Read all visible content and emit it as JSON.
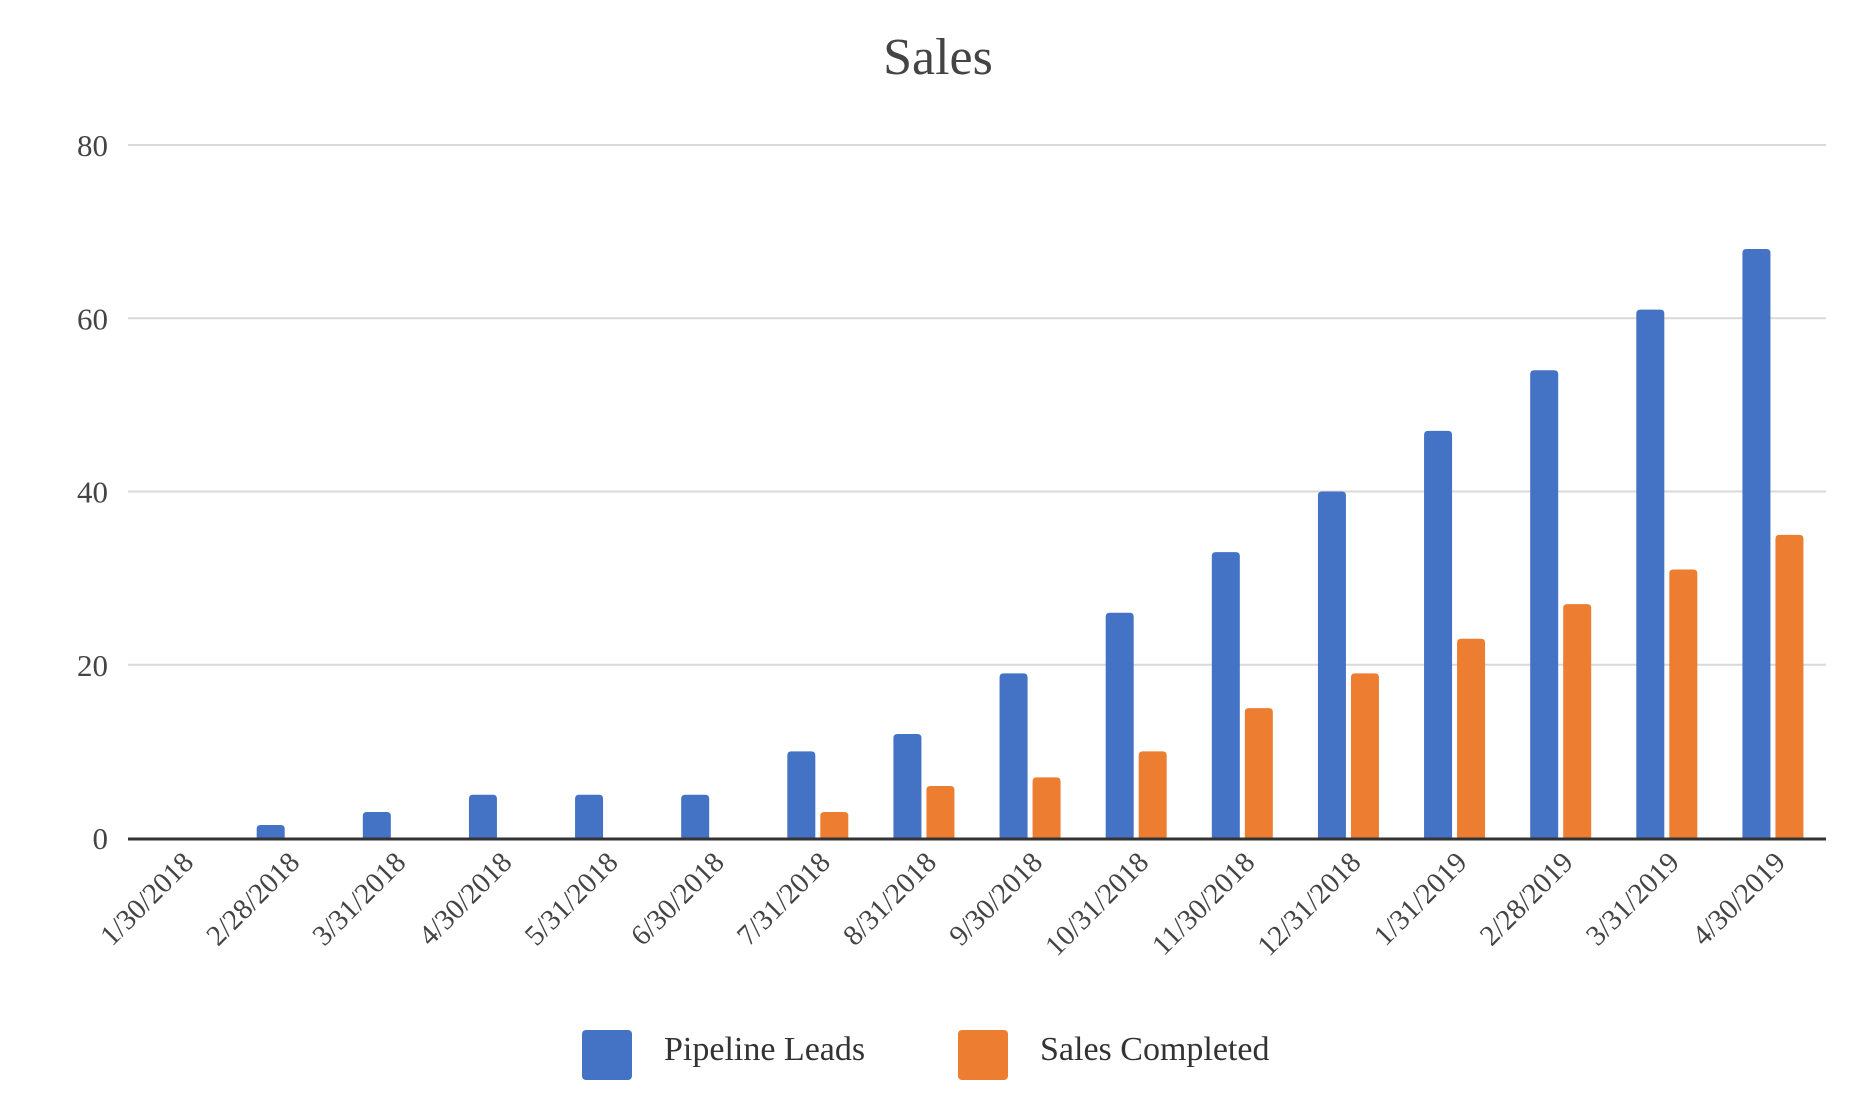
{
  "chart_data": {
    "type": "bar",
    "title": "Sales",
    "xlabel": "",
    "ylabel": "",
    "ylim": [
      0,
      80
    ],
    "yticks": [
      0,
      20,
      40,
      60,
      80
    ],
    "grid": true,
    "legend_position": "bottom",
    "categories": [
      "1/30/2018",
      "2/28/2018",
      "3/31/2018",
      "4/30/2018",
      "5/31/2018",
      "6/30/2018",
      "7/31/2018",
      "8/31/2018",
      "9/30/2018",
      "10/31/2018",
      "11/30/2018",
      "12/31/2018",
      "1/31/2019",
      "2/28/2019",
      "3/31/2019",
      "4/30/2019"
    ],
    "series": [
      {
        "name": "Pipeline Leads",
        "color": "#4472c4",
        "values": [
          0,
          1.5,
          3,
          5,
          5,
          5,
          10,
          12,
          19,
          26,
          33,
          40,
          47,
          54,
          61,
          68
        ]
      },
      {
        "name": "Sales Completed",
        "color": "#ed7d31",
        "values": [
          0,
          0,
          0,
          0,
          0,
          0,
          3,
          6,
          7,
          10,
          15,
          19,
          23,
          27,
          31,
          35
        ]
      }
    ]
  }
}
